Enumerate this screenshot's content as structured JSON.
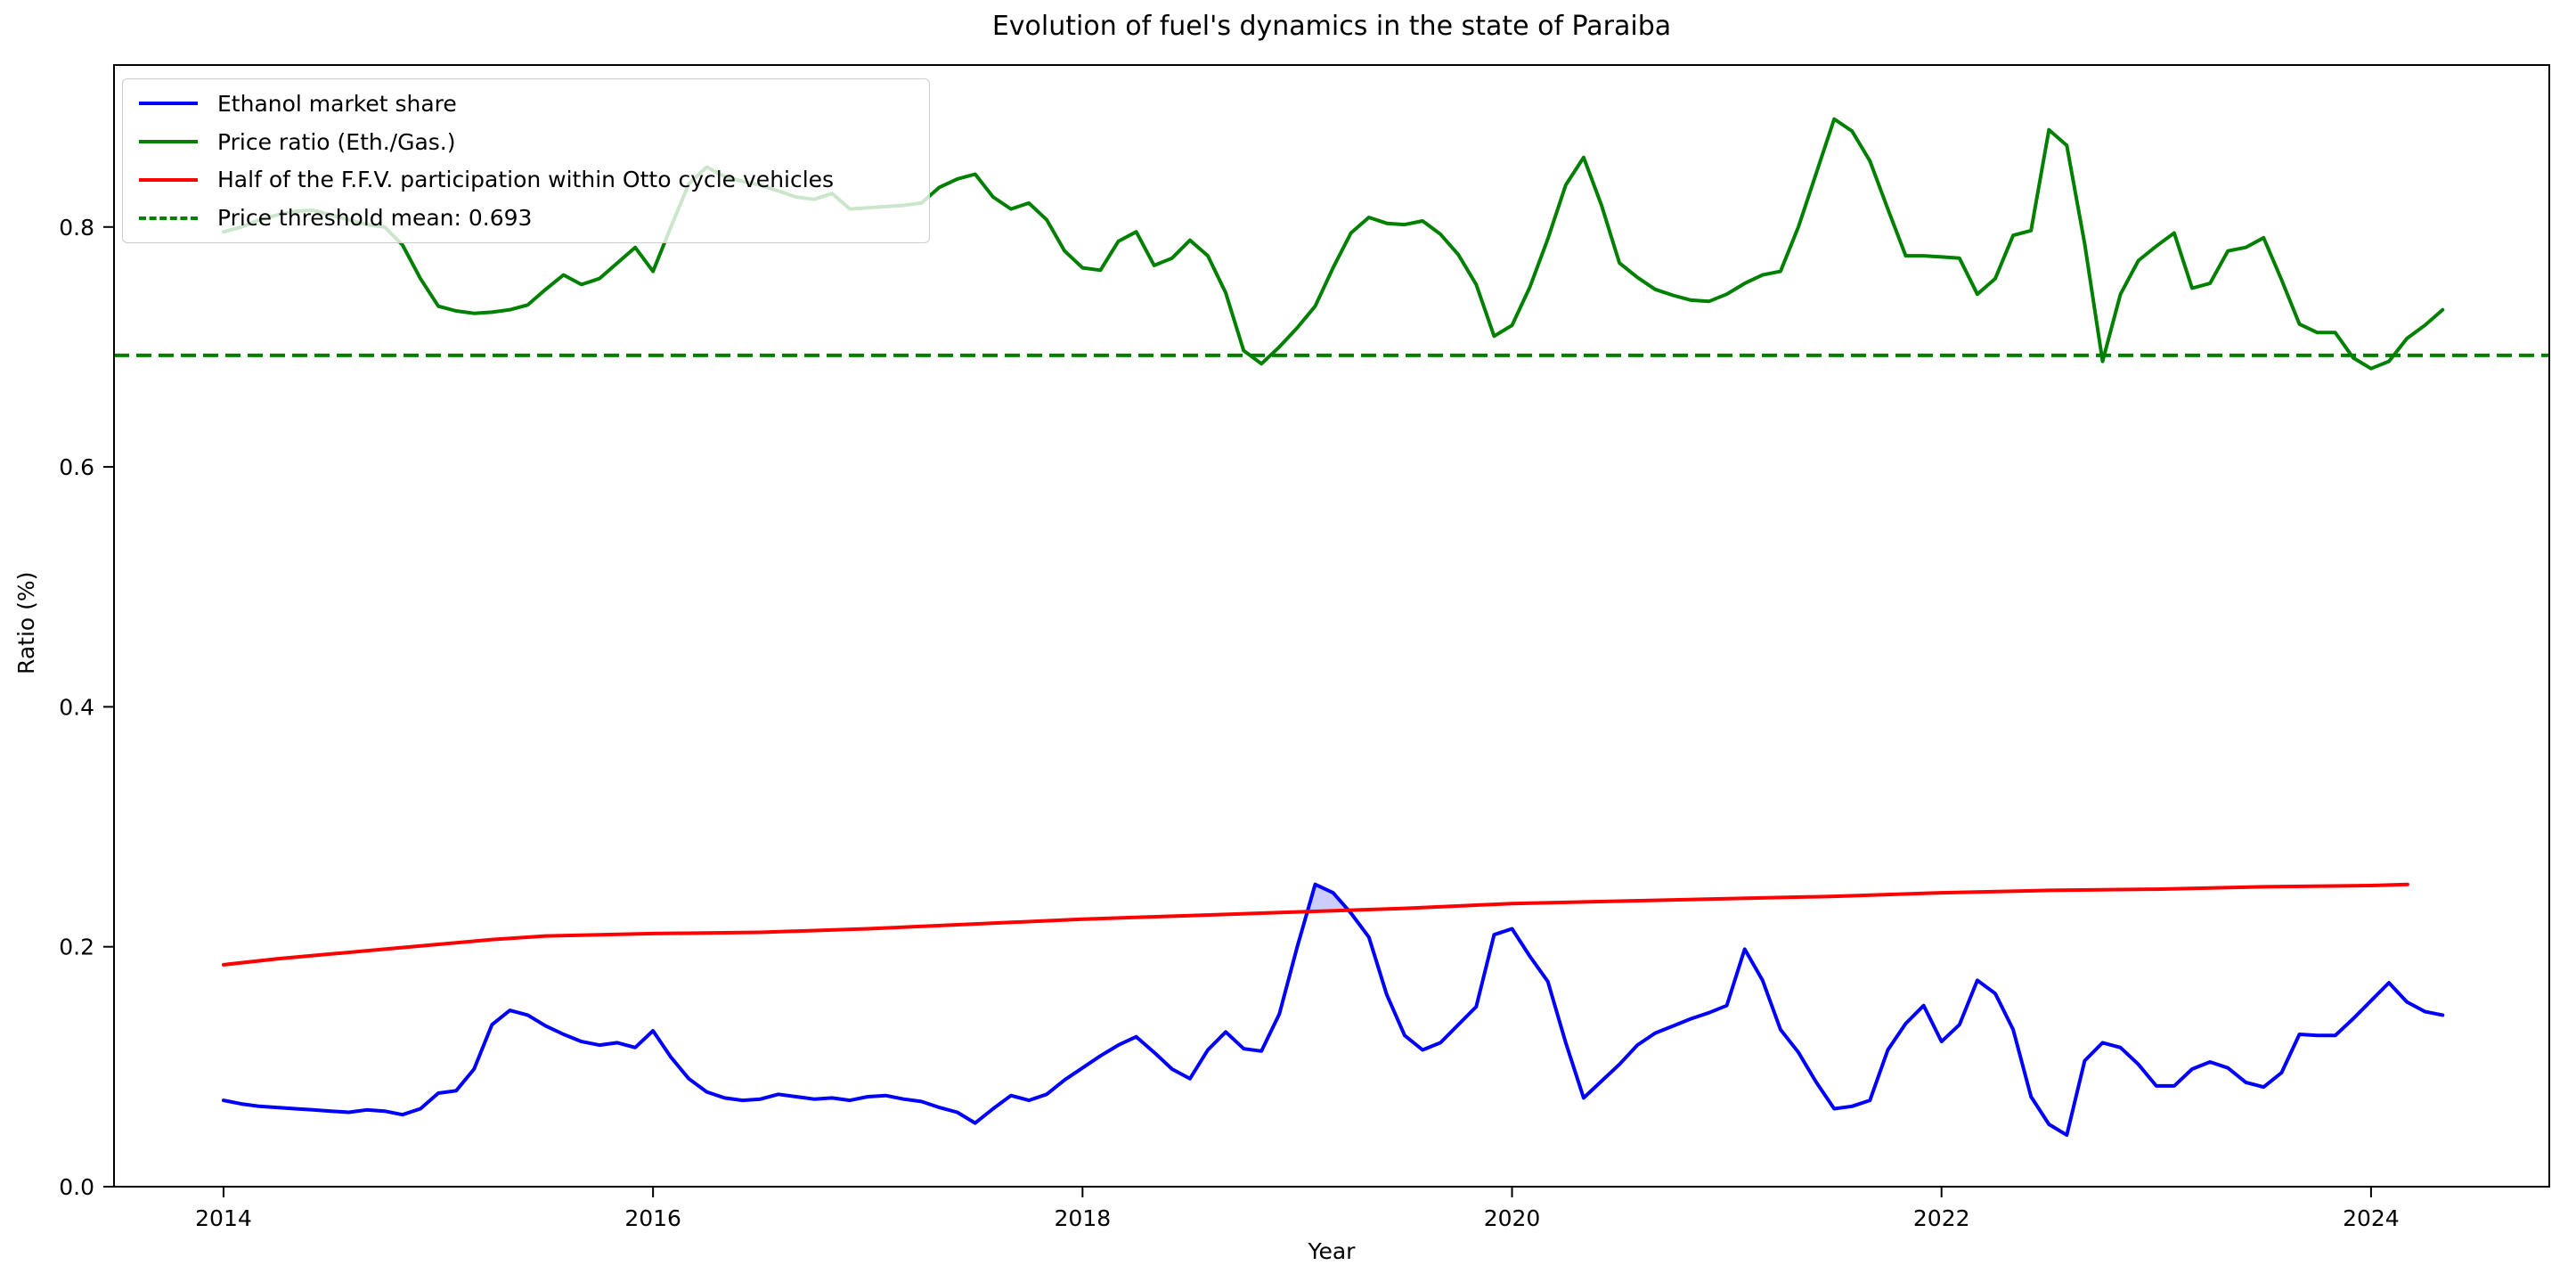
{
  "figure": {
    "title": "Evolution of fuel's dynamics in the state of Paraiba",
    "xlabel": "Year",
    "ylabel": "Ratio (%)"
  },
  "legend": {
    "items": [
      {
        "label": "Ethanol market share",
        "color": "#0000ff",
        "dash": false
      },
      {
        "label": "Price ratio (Eth./Gas.)",
        "color": "#008000",
        "dash": false
      },
      {
        "label": "Half of the F.F.V. participation within Otto cycle vehicles",
        "color": "#ff0000",
        "dash": false
      },
      {
        "label": "Price threshold mean: 0.693",
        "color": "#008000",
        "dash": true
      }
    ]
  },
  "chart_data": {
    "type": "line",
    "title": "Evolution of fuel's dynamics in the state of Paraiba",
    "xlabel": "Year",
    "ylabel": "Ratio (%)",
    "xlim": [
      2013.49,
      2024.83
    ],
    "ylim": [
      0,
      0.935
    ],
    "xticks": [
      2014,
      2016,
      2018,
      2020,
      2022,
      2024
    ],
    "yticks": [
      0.0,
      0.2,
      0.4,
      0.6,
      0.8
    ],
    "ytick_labels": [
      "0.0",
      "0.2",
      "0.4",
      "0.6",
      "0.8"
    ],
    "grid": false,
    "legend_position": "upper left",
    "threshold": {
      "label": "Price threshold mean: 0.693",
      "value": 0.693,
      "color": "#008000"
    },
    "fill_between": {
      "upper_series": 0,
      "lower_series": 2,
      "color": "#0000ff",
      "opacity": 0.2
    },
    "series": [
      {
        "name": "Ethanol market share",
        "color": "#0000ff",
        "x_start": 2014.0,
        "x_step": 0.0833333,
        "values": [
          0.072,
          0.069,
          0.067,
          0.066,
          0.065,
          0.064,
          0.063,
          0.062,
          0.064,
          0.063,
          0.06,
          0.065,
          0.078,
          0.08,
          0.098,
          0.135,
          0.147,
          0.143,
          0.134,
          0.127,
          0.121,
          0.118,
          0.12,
          0.116,
          0.13,
          0.108,
          0.09,
          0.079,
          0.074,
          0.072,
          0.073,
          0.077,
          0.075,
          0.073,
          0.074,
          0.072,
          0.075,
          0.076,
          0.073,
          0.071,
          0.066,
          0.062,
          0.053,
          0.065,
          0.076,
          0.072,
          0.077,
          0.089,
          0.099,
          0.109,
          0.118,
          0.125,
          0.112,
          0.098,
          0.09,
          0.114,
          0.129,
          0.115,
          0.113,
          0.144,
          0.2,
          0.252,
          0.245,
          0.228,
          0.208,
          0.16,
          0.126,
          0.114,
          0.12,
          0.135,
          0.15,
          0.21,
          0.215,
          0.192,
          0.171,
          0.12,
          0.074,
          0.088,
          0.102,
          0.118,
          0.128,
          0.134,
          0.14,
          0.145,
          0.151,
          0.198,
          0.172,
          0.131,
          0.112,
          0.087,
          0.065,
          0.067,
          0.072,
          0.114,
          0.136,
          0.151,
          0.121,
          0.135,
          0.172,
          0.161,
          0.131,
          0.075,
          0.052,
          0.043,
          0.105,
          0.12,
          0.116,
          0.102,
          0.084,
          0.084,
          0.098,
          0.104,
          0.099,
          0.087,
          0.083,
          0.095,
          0.127,
          0.126,
          0.126,
          0.14,
          0.155,
          0.17,
          0.154,
          0.146,
          0.143
        ]
      },
      {
        "name": "Price ratio (Eth./Gas.)",
        "color": "#008000",
        "x_start": 2014.0,
        "x_step": 0.0833333,
        "values": [
          0.796,
          0.8,
          0.806,
          0.81,
          0.813,
          0.814,
          0.81,
          0.806,
          0.802,
          0.8,
          0.785,
          0.757,
          0.734,
          0.73,
          0.728,
          0.729,
          0.731,
          0.735,
          0.748,
          0.76,
          0.752,
          0.757,
          0.77,
          0.783,
          0.763,
          0.8,
          0.836,
          0.85,
          0.842,
          0.838,
          0.835,
          0.83,
          0.825,
          0.823,
          0.828,
          0.815,
          0.816,
          0.817,
          0.818,
          0.82,
          0.833,
          0.84,
          0.844,
          0.825,
          0.815,
          0.82,
          0.806,
          0.78,
          0.766,
          0.764,
          0.788,
          0.796,
          0.768,
          0.774,
          0.789,
          0.776,
          0.745,
          0.697,
          0.686,
          0.7,
          0.716,
          0.734,
          0.766,
          0.795,
          0.808,
          0.803,
          0.802,
          0.805,
          0.794,
          0.777,
          0.752,
          0.709,
          0.718,
          0.75,
          0.79,
          0.835,
          0.858,
          0.818,
          0.77,
          0.758,
          0.748,
          0.743,
          0.739,
          0.738,
          0.744,
          0.753,
          0.76,
          0.763,
          0.8,
          0.845,
          0.89,
          0.88,
          0.855,
          0.815,
          0.776,
          0.776,
          0.775,
          0.774,
          0.744,
          0.757,
          0.793,
          0.797,
          0.881,
          0.868,
          0.786,
          0.688,
          0.744,
          0.772,
          0.784,
          0.795,
          0.749,
          0.753,
          0.78,
          0.783,
          0.791,
          0.756,
          0.719,
          0.712,
          0.712,
          0.691,
          0.682,
          0.688,
          0.707,
          0.718,
          0.731
        ]
      },
      {
        "name": "Half of the F.F.V. participation within Otto cycle vehicles",
        "color": "#ff0000",
        "x": [
          2014.0,
          2014.25,
          2014.5,
          2014.75,
          2015.0,
          2015.25,
          2015.5,
          2016.0,
          2016.5,
          2017.0,
          2017.5,
          2018.0,
          2018.5,
          2019.0,
          2019.5,
          2020.0,
          2020.5,
          2021.0,
          2021.5,
          2022.0,
          2022.5,
          2023.0,
          2023.5,
          2024.0,
          2024.17
        ],
        "values": [
          0.185,
          0.19,
          0.194,
          0.198,
          0.202,
          0.206,
          0.209,
          0.211,
          0.212,
          0.215,
          0.219,
          0.223,
          0.226,
          0.229,
          0.232,
          0.236,
          0.238,
          0.24,
          0.242,
          0.245,
          0.247,
          0.248,
          0.25,
          0.251,
          0.252
        ]
      }
    ]
  }
}
